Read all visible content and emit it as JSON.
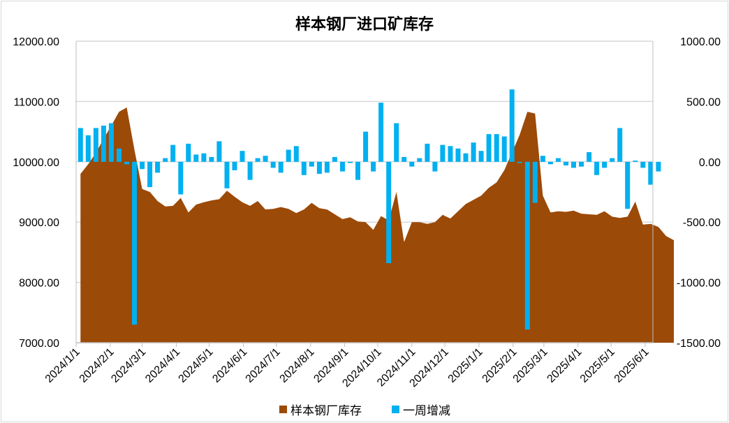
{
  "chart_data": {
    "type": "area+bar",
    "title": "样本钢厂进口矿库存",
    "x_axis": {
      "tick_labels": [
        "2024/1/1",
        "2024/2/1",
        "2024/3/1",
        "2024/4/1",
        "2024/5/1",
        "2024/6/1",
        "2024/7/1",
        "2024/8/1",
        "2024/9/1",
        "2024/10/1",
        "2024/11/1",
        "2024/12/1",
        "2025/1/1",
        "2025/2/1",
        "2025/3/1",
        "2025/4/1",
        "2025/5/1",
        "2025/6/1"
      ],
      "range": [
        "2024/1/1",
        "2025/6/8"
      ]
    },
    "y_left": {
      "ticks": [
        "7000.00",
        "8000.00",
        "9000.00",
        "10000.00",
        "11000.00",
        "12000.00"
      ],
      "range": [
        7000,
        12000
      ]
    },
    "y_right": {
      "ticks": [
        "-1500.00",
        "-1000.00",
        "-500.00",
        "0.00",
        "500.00",
        "1000.00"
      ],
      "range": [
        -1500,
        1000
      ]
    },
    "gridlines": "horizontal",
    "legend": {
      "position": "bottom"
    },
    "series": [
      {
        "name": "样本钢厂库存",
        "type": "area",
        "axis": "left",
        "color": "#9c4a08",
        "points": [
          [
            "2024/1/5",
            9800
          ],
          [
            "2024/1/12",
            9960
          ],
          [
            "2024/1/19",
            10150
          ],
          [
            "2024/1/26",
            10380
          ],
          [
            "2024/2/2",
            10600
          ],
          [
            "2024/2/9",
            10830
          ],
          [
            "2024/2/16",
            10900
          ],
          [
            "2024/2/23",
            10200
          ],
          [
            "2024/3/1",
            9550
          ],
          [
            "2024/3/8",
            9500
          ],
          [
            "2024/3/15",
            9350
          ],
          [
            "2024/3/22",
            9260
          ],
          [
            "2024/3/29",
            9270
          ],
          [
            "2024/4/5",
            9400
          ],
          [
            "2024/4/12",
            9160
          ],
          [
            "2024/4/19",
            9290
          ],
          [
            "2024/4/26",
            9330
          ],
          [
            "2024/5/3",
            9360
          ],
          [
            "2024/5/10",
            9380
          ],
          [
            "2024/5/17",
            9520
          ],
          [
            "2024/5/24",
            9420
          ],
          [
            "2024/5/31",
            9330
          ],
          [
            "2024/6/7",
            9270
          ],
          [
            "2024/6/14",
            9350
          ],
          [
            "2024/6/21",
            9210
          ],
          [
            "2024/6/28",
            9220
          ],
          [
            "2024/7/5",
            9250
          ],
          [
            "2024/7/12",
            9220
          ],
          [
            "2024/7/19",
            9150
          ],
          [
            "2024/7/26",
            9210
          ],
          [
            "2024/8/2",
            9320
          ],
          [
            "2024/8/9",
            9230
          ],
          [
            "2024/8/16",
            9210
          ],
          [
            "2024/8/23",
            9130
          ],
          [
            "2024/8/30",
            9050
          ],
          [
            "2024/9/6",
            9080
          ],
          [
            "2024/9/13",
            9010
          ],
          [
            "2024/9/20",
            9000
          ],
          [
            "2024/9/27",
            8870
          ],
          [
            "2024/10/4",
            9100
          ],
          [
            "2024/10/11",
            9030
          ],
          [
            "2024/10/18",
            9500
          ],
          [
            "2024/10/25",
            8670
          ],
          [
            "2024/11/1",
            9000
          ],
          [
            "2024/11/8",
            9000
          ],
          [
            "2024/11/15",
            8970
          ],
          [
            "2024/11/22",
            9000
          ],
          [
            "2024/11/29",
            9120
          ],
          [
            "2024/12/6",
            9060
          ],
          [
            "2024/12/13",
            9180
          ],
          [
            "2024/12/20",
            9300
          ],
          [
            "2024/12/27",
            9370
          ],
          [
            "2025/1/3",
            9440
          ],
          [
            "2025/1/10",
            9570
          ],
          [
            "2025/1/17",
            9660
          ],
          [
            "2025/1/24",
            9860
          ],
          [
            "2025/1/31",
            10150
          ],
          [
            "2025/2/7",
            10450
          ],
          [
            "2025/2/14",
            10830
          ],
          [
            "2025/2/21",
            10800
          ],
          [
            "2025/2/28",
            9440
          ],
          [
            "2025/3/7",
            9160
          ],
          [
            "2025/3/14",
            9180
          ],
          [
            "2025/3/21",
            9170
          ],
          [
            "2025/3/28",
            9190
          ],
          [
            "2025/4/4",
            9140
          ],
          [
            "2025/4/11",
            9130
          ],
          [
            "2025/4/18",
            9120
          ],
          [
            "2025/4/25",
            9180
          ],
          [
            "2025/5/2",
            9090
          ],
          [
            "2025/5/9",
            9070
          ],
          [
            "2025/5/16",
            9090
          ],
          [
            "2025/5/23",
            9340
          ],
          [
            "2025/5/30",
            8960
          ],
          [
            "2025/6/6",
            8970
          ],
          [
            "2025/6/13",
            8920
          ],
          [
            "2025/6/20",
            8770
          ],
          [
            "2025/6/27",
            8700
          ]
        ]
      },
      {
        "name": "一周增减",
        "type": "bar",
        "axis": "right",
        "color": "#00b0f0",
        "points": [
          [
            "2024/1/5",
            280
          ],
          [
            "2024/1/12",
            220
          ],
          [
            "2024/1/19",
            280
          ],
          [
            "2024/1/26",
            300
          ],
          [
            "2024/2/2",
            320
          ],
          [
            "2024/2/9",
            110
          ],
          [
            "2024/2/16",
            -20
          ],
          [
            "2024/2/23",
            -1350
          ],
          [
            "2024/3/1",
            -60
          ],
          [
            "2024/3/8",
            -210
          ],
          [
            "2024/3/15",
            -90
          ],
          [
            "2024/3/22",
            30
          ],
          [
            "2024/3/29",
            140
          ],
          [
            "2024/4/5",
            -270
          ],
          [
            "2024/4/12",
            150
          ],
          [
            "2024/4/19",
            60
          ],
          [
            "2024/4/26",
            70
          ],
          [
            "2024/5/3",
            40
          ],
          [
            "2024/5/10",
            170
          ],
          [
            "2024/5/17",
            -220
          ],
          [
            "2024/5/24",
            -70
          ],
          [
            "2024/5/31",
            90
          ],
          [
            "2024/6/7",
            -150
          ],
          [
            "2024/6/14",
            30
          ],
          [
            "2024/6/21",
            50
          ],
          [
            "2024/6/28",
            -50
          ],
          [
            "2024/7/5",
            -90
          ],
          [
            "2024/7/12",
            100
          ],
          [
            "2024/7/19",
            130
          ],
          [
            "2024/7/26",
            -110
          ],
          [
            "2024/8/2",
            -40
          ],
          [
            "2024/8/9",
            -100
          ],
          [
            "2024/8/16",
            -90
          ],
          [
            "2024/8/23",
            40
          ],
          [
            "2024/8/30",
            -80
          ],
          [
            "2024/9/6",
            -10
          ],
          [
            "2024/9/13",
            -150
          ],
          [
            "2024/9/20",
            250
          ],
          [
            "2024/9/27",
            -80
          ],
          [
            "2024/10/4",
            490
          ],
          [
            "2024/10/11",
            -840
          ],
          [
            "2024/10/18",
            320
          ],
          [
            "2024/10/25",
            40
          ],
          [
            "2024/11/1",
            -40
          ],
          [
            "2024/11/8",
            30
          ],
          [
            "2024/11/15",
            150
          ],
          [
            "2024/11/22",
            -80
          ],
          [
            "2024/11/29",
            140
          ],
          [
            "2024/12/6",
            130
          ],
          [
            "2024/12/13",
            110
          ],
          [
            "2024/12/20",
            70
          ],
          [
            "2024/12/27",
            160
          ],
          [
            "2025/1/3",
            90
          ],
          [
            "2025/1/10",
            230
          ],
          [
            "2025/1/17",
            230
          ],
          [
            "2025/1/24",
            210
          ],
          [
            "2025/1/31",
            600
          ],
          [
            "2025/2/7",
            -10
          ],
          [
            "2025/2/14",
            -1390
          ],
          [
            "2025/2/21",
            -340
          ],
          [
            "2025/2/28",
            50
          ],
          [
            "2025/3/7",
            -20
          ],
          [
            "2025/3/14",
            30
          ],
          [
            "2025/3/21",
            -30
          ],
          [
            "2025/3/28",
            -50
          ],
          [
            "2025/4/4",
            -40
          ],
          [
            "2025/4/11",
            80
          ],
          [
            "2025/4/18",
            -110
          ],
          [
            "2025/4/25",
            -50
          ],
          [
            "2025/5/2",
            30
          ],
          [
            "2025/5/9",
            280
          ],
          [
            "2025/5/16",
            -390
          ],
          [
            "2025/5/23",
            10
          ],
          [
            "2025/5/30",
            -50
          ],
          [
            "2025/6/6",
            -190
          ],
          [
            "2025/6/13",
            -80
          ]
        ]
      }
    ]
  }
}
